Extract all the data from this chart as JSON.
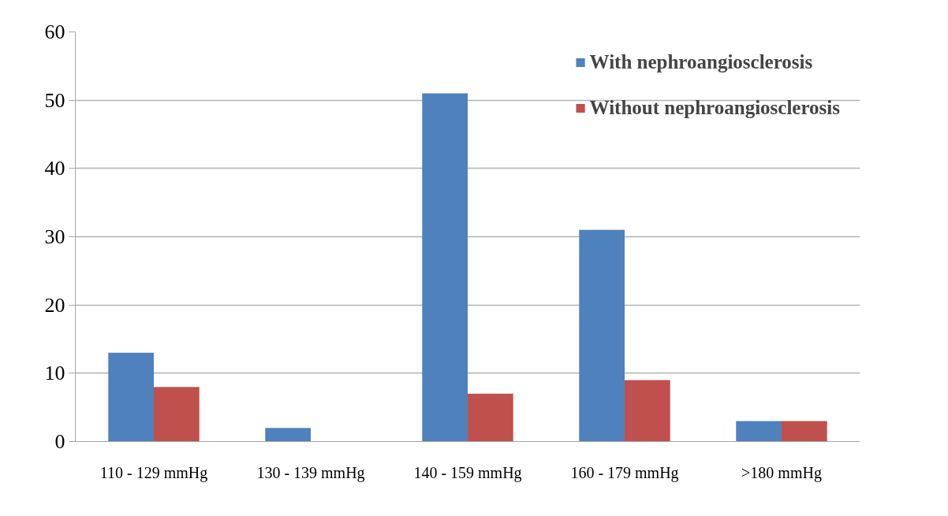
{
  "chart_data": {
    "type": "bar",
    "categories": [
      "110 - 129 mmHg",
      "130 - 139 mmHg",
      "140 - 159 mmHg",
      "160 - 179 mmHg",
      ">180 mmHg"
    ],
    "series": [
      {
        "name": "With nephroangiosclerosis",
        "color": "#4f81bd",
        "values": [
          13,
          2,
          51,
          31,
          3
        ]
      },
      {
        "name": "Without nephroangiosclerosis",
        "color": "#c0504d",
        "values": [
          8,
          0,
          7,
          9,
          3
        ]
      }
    ],
    "ylim": [
      0,
      60
    ],
    "yticks": [
      0,
      10,
      20,
      30,
      40,
      50,
      60
    ],
    "grid": "y",
    "legend": "top right"
  }
}
